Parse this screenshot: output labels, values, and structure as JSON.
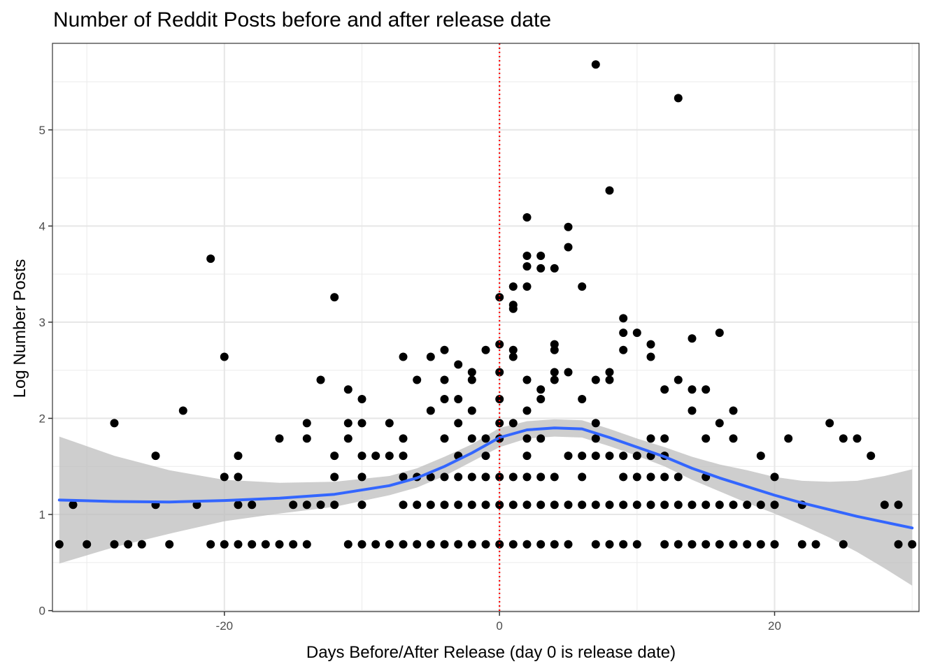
{
  "chart_data": {
    "type": "scatter",
    "title": "Number of Reddit Posts before and after release date",
    "xlabel": "Days Before/After Release (day 0 is release date)",
    "ylabel": "Log Number Posts",
    "xlim": [
      -32.5,
      30.5
    ],
    "ylim": [
      -0.01,
      5.9
    ],
    "x_ticks": [
      -20,
      0,
      20
    ],
    "x_tick_labels": [
      "-20",
      "0",
      "20"
    ],
    "y_ticks": [
      0,
      1,
      2,
      3,
      4,
      5
    ],
    "y_tick_labels": [
      "0",
      "1",
      "2",
      "3",
      "4",
      "5"
    ],
    "grid": true,
    "reference_line": {
      "x": 0,
      "style": "dotted",
      "color": "#ff0000"
    },
    "colors": {
      "points": "#000000",
      "smooth_line": "#3366ff",
      "confidence_band": "#bebebe"
    },
    "points": [
      [
        -32,
        0.69
      ],
      [
        -31,
        1.1
      ],
      [
        -30,
        0.69
      ],
      [
        -28,
        1.95
      ],
      [
        -28,
        0.69
      ],
      [
        -27,
        0.69
      ],
      [
        -26,
        0.69
      ],
      [
        -25,
        1.61
      ],
      [
        -25,
        1.1
      ],
      [
        -24,
        0.69
      ],
      [
        -23,
        2.08
      ],
      [
        -22,
        1.1
      ],
      [
        -21,
        3.66
      ],
      [
        -21,
        0.69
      ],
      [
        -20,
        2.64
      ],
      [
        -20,
        1.39
      ],
      [
        -20,
        0.69
      ],
      [
        -19,
        1.61
      ],
      [
        -19,
        1.39
      ],
      [
        -19,
        1.1
      ],
      [
        -19,
        0.69
      ],
      [
        -18,
        1.1
      ],
      [
        -18,
        0.69
      ],
      [
        -17,
        0.69
      ],
      [
        -16,
        1.79
      ],
      [
        -16,
        0.69
      ],
      [
        -15,
        0.69
      ],
      [
        -14,
        1.95
      ],
      [
        -14,
        1.79
      ],
      [
        -14,
        1.1
      ],
      [
        -14,
        0.69
      ],
      [
        -15,
        1.1
      ],
      [
        -13,
        2.4
      ],
      [
        -13,
        1.1
      ],
      [
        -12,
        3.26
      ],
      [
        -12,
        1.61
      ],
      [
        -12,
        1.39
      ],
      [
        -12,
        1.1
      ],
      [
        -11,
        2.3
      ],
      [
        -11,
        1.95
      ],
      [
        -11,
        1.79
      ],
      [
        -11,
        0.69
      ],
      [
        -10,
        2.2
      ],
      [
        -10,
        1.95
      ],
      [
        -10,
        1.61
      ],
      [
        -10,
        1.39
      ],
      [
        -10,
        1.1
      ],
      [
        -10,
        0.69
      ],
      [
        -9,
        1.61
      ],
      [
        -9,
        0.69
      ],
      [
        -8,
        1.95
      ],
      [
        -8,
        1.61
      ],
      [
        -8,
        0.69
      ],
      [
        -7,
        2.64
      ],
      [
        -7,
        1.79
      ],
      [
        -7,
        1.61
      ],
      [
        -7,
        1.39
      ],
      [
        -7,
        1.1
      ],
      [
        -7,
        0.69
      ],
      [
        -6,
        2.4
      ],
      [
        -6,
        1.39
      ],
      [
        -6,
        1.1
      ],
      [
        -6,
        0.69
      ],
      [
        -5,
        2.64
      ],
      [
        -5,
        2.08
      ],
      [
        -5,
        1.39
      ],
      [
        -5,
        1.1
      ],
      [
        -5,
        0.69
      ],
      [
        -4,
        2.71
      ],
      [
        -4,
        2.4
      ],
      [
        -4,
        2.2
      ],
      [
        -4,
        1.79
      ],
      [
        -4,
        1.39
      ],
      [
        -4,
        1.1
      ],
      [
        -4,
        0.69
      ],
      [
        -3,
        2.56
      ],
      [
        -3,
        2.2
      ],
      [
        -3,
        1.95
      ],
      [
        -3,
        1.61
      ],
      [
        -3,
        1.39
      ],
      [
        -3,
        1.1
      ],
      [
        -3,
        0.69
      ],
      [
        -2,
        2.48
      ],
      [
        -2,
        2.4
      ],
      [
        -2,
        2.08
      ],
      [
        -2,
        1.79
      ],
      [
        -2,
        1.39
      ],
      [
        -2,
        1.1
      ],
      [
        -2,
        0.69
      ],
      [
        -1,
        2.71
      ],
      [
        -1,
        1.79
      ],
      [
        -1,
        1.61
      ],
      [
        -1,
        1.39
      ],
      [
        -1,
        1.1
      ],
      [
        -1,
        0.69
      ],
      [
        0,
        3.26
      ],
      [
        0,
        2.77
      ],
      [
        0,
        2.48
      ],
      [
        0,
        2.2
      ],
      [
        0,
        1.95
      ],
      [
        0,
        1.79
      ],
      [
        0,
        1.39
      ],
      [
        0,
        1.1
      ],
      [
        0,
        0.69
      ],
      [
        1,
        3.37
      ],
      [
        1,
        3.18
      ],
      [
        1,
        3.14
      ],
      [
        1,
        2.71
      ],
      [
        1,
        2.64
      ],
      [
        1,
        1.95
      ],
      [
        1,
        1.39
      ],
      [
        1,
        1.1
      ],
      [
        1,
        0.69
      ],
      [
        2,
        4.09
      ],
      [
        2,
        3.69
      ],
      [
        2,
        3.58
      ],
      [
        2,
        3.37
      ],
      [
        2,
        2.4
      ],
      [
        2,
        2.08
      ],
      [
        2,
        1.79
      ],
      [
        2,
        1.61
      ],
      [
        2,
        1.39
      ],
      [
        2,
        1.1
      ],
      [
        2,
        0.69
      ],
      [
        3,
        3.69
      ],
      [
        3,
        3.56
      ],
      [
        3,
        2.3
      ],
      [
        3,
        2.2
      ],
      [
        3,
        1.79
      ],
      [
        3,
        1.39
      ],
      [
        3,
        1.1
      ],
      [
        3,
        0.69
      ],
      [
        4,
        3.56
      ],
      [
        4,
        2.77
      ],
      [
        4,
        2.71
      ],
      [
        4,
        2.48
      ],
      [
        4,
        2.4
      ],
      [
        4,
        1.39
      ],
      [
        4,
        1.1
      ],
      [
        4,
        0.69
      ],
      [
        5,
        3.99
      ],
      [
        5,
        3.78
      ],
      [
        5,
        2.48
      ],
      [
        5,
        1.61
      ],
      [
        5,
        1.1
      ],
      [
        5,
        0.69
      ],
      [
        6,
        3.37
      ],
      [
        6,
        2.2
      ],
      [
        6,
        1.61
      ],
      [
        6,
        1.39
      ],
      [
        6,
        1.1
      ],
      [
        7,
        5.68
      ],
      [
        7,
        2.4
      ],
      [
        7,
        1.95
      ],
      [
        7,
        1.79
      ],
      [
        7,
        1.61
      ],
      [
        7,
        1.1
      ],
      [
        7,
        0.69
      ],
      [
        8,
        4.37
      ],
      [
        8,
        2.48
      ],
      [
        8,
        2.4
      ],
      [
        8,
        1.61
      ],
      [
        8,
        1.1
      ],
      [
        8,
        0.69
      ],
      [
        9,
        3.04
      ],
      [
        9,
        2.89
      ],
      [
        9,
        2.71
      ],
      [
        9,
        1.61
      ],
      [
        9,
        1.39
      ],
      [
        9,
        1.1
      ],
      [
        9,
        0.69
      ],
      [
        10,
        2.89
      ],
      [
        10,
        1.61
      ],
      [
        10,
        1.39
      ],
      [
        10,
        1.1
      ],
      [
        10,
        0.69
      ],
      [
        11,
        2.77
      ],
      [
        11,
        2.64
      ],
      [
        11,
        1.79
      ],
      [
        11,
        1.61
      ],
      [
        11,
        1.39
      ],
      [
        11,
        1.1
      ],
      [
        12,
        2.3
      ],
      [
        12,
        1.79
      ],
      [
        12,
        1.61
      ],
      [
        12,
        1.39
      ],
      [
        12,
        1.1
      ],
      [
        12,
        0.69
      ],
      [
        13,
        5.33
      ],
      [
        13,
        2.4
      ],
      [
        13,
        1.39
      ],
      [
        13,
        1.1
      ],
      [
        13,
        0.69
      ],
      [
        14,
        2.83
      ],
      [
        14,
        2.3
      ],
      [
        14,
        2.08
      ],
      [
        14,
        1.1
      ],
      [
        14,
        0.69
      ],
      [
        15,
        2.3
      ],
      [
        15,
        1.79
      ],
      [
        15,
        1.39
      ],
      [
        15,
        1.1
      ],
      [
        15,
        0.69
      ],
      [
        16,
        2.89
      ],
      [
        16,
        1.95
      ],
      [
        16,
        1.1
      ],
      [
        16,
        0.69
      ],
      [
        17,
        2.08
      ],
      [
        17,
        1.79
      ],
      [
        17,
        1.1
      ],
      [
        17,
        0.69
      ],
      [
        18,
        1.1
      ],
      [
        18,
        0.69
      ],
      [
        19,
        1.61
      ],
      [
        19,
        1.1
      ],
      [
        19,
        0.69
      ],
      [
        20,
        1.39
      ],
      [
        20,
        1.1
      ],
      [
        20,
        0.69
      ],
      [
        21,
        1.79
      ],
      [
        22,
        1.1
      ],
      [
        22,
        0.69
      ],
      [
        23,
        0.69
      ],
      [
        24,
        1.95
      ],
      [
        25,
        1.79
      ],
      [
        25,
        0.69
      ],
      [
        26,
        1.79
      ],
      [
        27,
        1.61
      ],
      [
        28,
        1.1
      ],
      [
        29,
        1.1
      ],
      [
        29,
        0.69
      ],
      [
        30,
        0.69
      ]
    ],
    "smooth_curve": {
      "x": [
        -32,
        -28,
        -24,
        -20,
        -16,
        -12,
        -8,
        -6,
        -4,
        -2,
        0,
        2,
        4,
        6,
        8,
        10,
        12,
        14,
        16,
        18,
        20,
        22,
        24,
        26,
        28,
        30
      ],
      "y": [
        1.15,
        1.135,
        1.13,
        1.145,
        1.17,
        1.21,
        1.3,
        1.38,
        1.5,
        1.64,
        1.8,
        1.88,
        1.9,
        1.89,
        1.8,
        1.7,
        1.6,
        1.48,
        1.38,
        1.29,
        1.2,
        1.12,
        1.05,
        0.98,
        0.92,
        0.86
      ],
      "lower": [
        0.49,
        0.66,
        0.8,
        0.93,
        1.01,
        1.08,
        1.2,
        1.28,
        1.4,
        1.55,
        1.7,
        1.79,
        1.81,
        1.8,
        1.71,
        1.61,
        1.5,
        1.36,
        1.24,
        1.12,
        1.01,
        0.89,
        0.76,
        0.61,
        0.44,
        0.26
      ],
      "upper": [
        1.81,
        1.61,
        1.46,
        1.36,
        1.33,
        1.34,
        1.4,
        1.48,
        1.6,
        1.73,
        1.9,
        1.97,
        1.99,
        1.98,
        1.89,
        1.79,
        1.7,
        1.6,
        1.52,
        1.46,
        1.39,
        1.35,
        1.34,
        1.35,
        1.4,
        1.47
      ]
    }
  }
}
